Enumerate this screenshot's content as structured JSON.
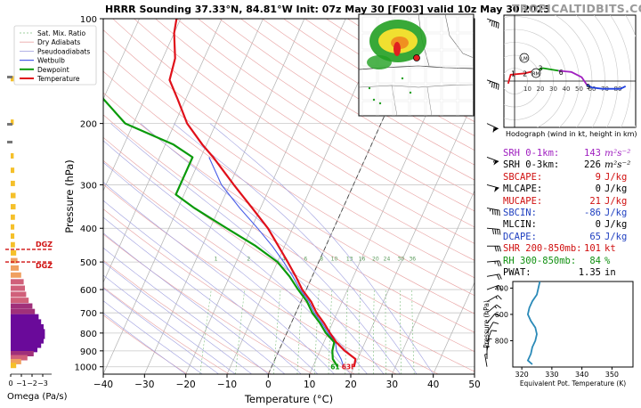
{
  "header": {
    "title": "HRRR Sounding 37.33°N, 84.81°W Init: 07z May 30 [F003] valid 10z May 30 2025",
    "brand": "TROPICALTIDBITS.COM"
  },
  "colors": {
    "temperature": "#e0101a",
    "dewpoint": "#0a9a0a",
    "wetbulb": "#4a5ee8",
    "dry_adiabat": "#e8a0a0",
    "moist_adiabat": "#a0a0e0",
    "mixing_ratio": "#80c080",
    "omega_up": "#6a0a9a",
    "omega_mid": "#d0607a",
    "omega_down": "#f5c02a"
  },
  "legend": [
    {
      "label": "Sat. Mix. Ratio",
      "style": "mixing"
    },
    {
      "label": "Dry Adiabats",
      "style": "dry"
    },
    {
      "label": "Pseudoadiabats",
      "style": "moist"
    },
    {
      "label": "Wetbulb",
      "style": "wetbulb"
    },
    {
      "label": "Dewpoint",
      "style": "dewpoint"
    },
    {
      "label": "Temperature",
      "style": "temperature"
    }
  ],
  "chart_data": [
    {
      "type": "line",
      "name": "skew-t",
      "title": "HRRR Sounding",
      "xlabel": "Temperature (°C)",
      "ylabel": "Pressure (hPa)",
      "x_ticks": [
        -40,
        -30,
        -20,
        -10,
        0,
        10,
        20,
        30,
        40,
        50
      ],
      "y_ticks": [
        100,
        200,
        300,
        400,
        500,
        600,
        700,
        800,
        900,
        1000
      ],
      "xlim": [
        -40,
        50
      ],
      "ylim": [
        1050,
        100
      ],
      "mixing_ratio_labels": [
        "1",
        "2",
        "4",
        "6",
        "8",
        "10",
        "13",
        "16",
        "20",
        "24",
        "30",
        "36"
      ],
      "surface_labels": {
        "dewpoint": "61",
        "temperature": "63F"
      },
      "series": [
        {
          "name": "Temperature",
          "points": [
            [
              1000,
              20
            ],
            [
              950,
              19.5
            ],
            [
              900,
              16
            ],
            [
              850,
              13
            ],
            [
              800,
              10.5
            ],
            [
              750,
              8
            ],
            [
              700,
              5
            ],
            [
              650,
              2.5
            ],
            [
              600,
              -1
            ],
            [
              550,
              -4
            ],
            [
              500,
              -7.5
            ],
            [
              450,
              -11.5
            ],
            [
              400,
              -16
            ],
            [
              350,
              -22
            ],
            [
              300,
              -29
            ],
            [
              250,
              -37
            ],
            [
              230,
              -41
            ],
            [
              200,
              -47
            ],
            [
              170,
              -52
            ],
            [
              150,
              -56
            ],
            [
              130,
              -57
            ],
            [
              110,
              -60
            ],
            [
              100,
              -61
            ]
          ]
        },
        {
          "name": "Dewpoint",
          "points": [
            [
              1000,
              16
            ],
            [
              950,
              14
            ],
            [
              900,
              13
            ],
            [
              850,
              12.5
            ],
            [
              800,
              9.5
            ],
            [
              750,
              7
            ],
            [
              700,
              4
            ],
            [
              650,
              1.5
            ],
            [
              600,
              -2
            ],
            [
              550,
              -5.5
            ],
            [
              500,
              -10
            ],
            [
              450,
              -17
            ],
            [
              400,
              -26
            ],
            [
              350,
              -36
            ],
            [
              320,
              -42
            ],
            [
              300,
              -42
            ],
            [
              280,
              -42
            ],
            [
              250,
              -42
            ],
            [
              230,
              -48
            ],
            [
              200,
              -62
            ],
            [
              170,
              -70
            ],
            [
              150,
              -75
            ],
            [
              130,
              -76
            ],
            [
              110,
              -78
            ],
            [
              100,
              -80
            ]
          ]
        },
        {
          "name": "Wetbulb",
          "points": [
            [
              1000,
              17.5
            ],
            [
              950,
              16
            ],
            [
              900,
              14
            ],
            [
              850,
              12.8
            ],
            [
              800,
              10
            ],
            [
              750,
              7.5
            ],
            [
              700,
              4.5
            ],
            [
              650,
              2
            ],
            [
              600,
              -1.5
            ],
            [
              550,
              -4.7
            ],
            [
              500,
              -8.5
            ],
            [
              450,
              -13
            ],
            [
              400,
              -18.5
            ],
            [
              350,
              -25
            ],
            [
              300,
              -32
            ],
            [
              250,
              -38
            ]
          ]
        }
      ]
    },
    {
      "type": "bar",
      "name": "omega-profile",
      "xlabel": "Omega (Pa/s)",
      "x_ticks": [
        "0",
        "−1",
        "−2",
        "−3"
      ],
      "dgz_label": "DGZ",
      "pressure_levels": [
        150,
        175,
        200,
        225,
        250,
        275,
        300,
        325,
        350,
        375,
        400,
        425,
        450,
        475,
        500,
        525,
        550,
        575,
        600,
        625,
        650,
        675,
        700,
        725,
        750,
        775,
        800,
        825,
        850,
        875,
        900,
        925,
        950,
        975,
        1000
      ],
      "values": [
        0.1,
        0,
        0.1,
        0,
        0.1,
        0.15,
        0.2,
        0.25,
        0.25,
        0.2,
        0.15,
        0.15,
        0.2,
        0.3,
        0.4,
        0.5,
        0.7,
        0.9,
        1.0,
        1.1,
        1.3,
        1.6,
        1.8,
        2.1,
        2.3,
        2.5,
        2.6,
        2.6,
        2.5,
        2.3,
        2.0,
        1.7,
        1.2,
        0.7,
        0.3
      ],
      "dgz_bounds_hpa": [
        460,
        500
      ]
    },
    {
      "type": "line",
      "name": "hodograph",
      "caption": "Hodograph (wind in kt, height in km)",
      "ring_labels": [
        "10",
        "20",
        "30",
        "40",
        "50",
        "60",
        "70",
        "80"
      ],
      "point_labels": [
        "1",
        "2",
        "3",
        "6",
        "9"
      ],
      "marker_labels": [
        "LM",
        "RM"
      ],
      "series": [
        {
          "name": "0-3km",
          "color": "#e0101a",
          "points": [
            [
              -5,
              -2
            ],
            [
              -3,
              5
            ],
            [
              8,
              6
            ],
            [
              16,
              8
            ]
          ]
        },
        {
          "name": "3-6km",
          "color": "#0a9a0a",
          "points": [
            [
              16,
              8
            ],
            [
              22,
              10
            ],
            [
              34,
              8
            ]
          ]
        },
        {
          "name": "6-9km",
          "color": "#a020c0",
          "points": [
            [
              34,
              8
            ],
            [
              44,
              7
            ],
            [
              52,
              3
            ],
            [
              56,
              -3
            ]
          ]
        },
        {
          "name": "9-12km",
          "color": "#2040e0",
          "points": [
            [
              56,
              -3
            ],
            [
              60,
              -5
            ],
            [
              68,
              -6
            ],
            [
              82,
              -6
            ],
            [
              86,
              -4
            ]
          ]
        }
      ]
    },
    {
      "type": "line",
      "name": "theta-e",
      "xlabel": "Equivalent Pot. Temperature (K)",
      "ylabel": "Pressure (hPa)",
      "x_ticks": [
        320,
        330,
        340,
        350
      ],
      "y_ticks": [
        400,
        600,
        800
      ],
      "xlim": [
        317,
        357
      ],
      "ylim": [
        1000,
        350
      ],
      "series": [
        {
          "name": "theta_e",
          "points": [
            [
              350,
              326
            ],
            [
              400,
              325.5
            ],
            [
              450,
              325
            ],
            [
              500,
              323.5
            ],
            [
              550,
              322.5
            ],
            [
              600,
              322
            ],
            [
              650,
              323
            ],
            [
              700,
              324.5
            ],
            [
              750,
              325
            ],
            [
              800,
              324.5
            ],
            [
              850,
              323.5
            ],
            [
              900,
              323
            ],
            [
              950,
              322
            ],
            [
              980,
              323.5
            ]
          ]
        }
      ]
    }
  ],
  "indices": [
    {
      "label": "SRH 0-1km:",
      "value": "143",
      "unit": "m²s⁻²",
      "color": "#a020c0",
      "italic": true
    },
    {
      "label": "SRH 0-3km:",
      "value": "226",
      "unit": "m²s⁻²",
      "color": "#000000",
      "italic": true
    },
    {
      "label": "SBCAPE:",
      "value": "9",
      "unit": "J/kg",
      "color": "#d01010"
    },
    {
      "label": "MLCAPE:",
      "value": "0",
      "unit": "J/kg",
      "color": "#000000"
    },
    {
      "label": "MUCAPE:",
      "value": "21",
      "unit": "J/kg",
      "color": "#d01010"
    },
    {
      "label": "SBCIN:",
      "value": "-86",
      "unit": "J/kg",
      "color": "#2040c0"
    },
    {
      "label": "MLCIN:",
      "value": "0",
      "unit": "J/kg",
      "color": "#000000"
    },
    {
      "label": "DCAPE:",
      "value": "65",
      "unit": "J/kg",
      "color": "#2040c0"
    },
    {
      "label": "SHR 200-850mb:",
      "value": "101",
      "unit": "kt",
      "color": "#d01010"
    },
    {
      "label": "RH 300-850mb:",
      "value": "84",
      "unit": "%",
      "color": "#109010"
    },
    {
      "label": "PWAT:",
      "value": "1.35",
      "unit": "in",
      "color": "#000000"
    }
  ],
  "wind_barbs": [
    {
      "p": 100,
      "spd": 45,
      "dir": 290
    },
    {
      "p": 150,
      "spd": 45,
      "dir": 290
    },
    {
      "p": 200,
      "spd": 60,
      "dir": 295
    },
    {
      "p": 250,
      "spd": 55,
      "dir": 290
    },
    {
      "p": 300,
      "spd": 50,
      "dir": 285
    },
    {
      "p": 350,
      "spd": 45,
      "dir": 280
    },
    {
      "p": 400,
      "spd": 40,
      "dir": 275
    },
    {
      "p": 450,
      "spd": 30,
      "dir": 270
    },
    {
      "p": 500,
      "spd": 25,
      "dir": 265
    },
    {
      "p": 550,
      "spd": 20,
      "dir": 260
    },
    {
      "p": 600,
      "spd": 15,
      "dir": 250
    },
    {
      "p": 650,
      "spd": 15,
      "dir": 240
    },
    {
      "p": 700,
      "spd": 15,
      "dir": 230
    },
    {
      "p": 750,
      "spd": 10,
      "dir": 220
    },
    {
      "p": 800,
      "spd": 10,
      "dir": 210
    },
    {
      "p": 850,
      "spd": 10,
      "dir": 200
    },
    {
      "p": 900,
      "spd": 5,
      "dir": 190
    },
    {
      "p": 950,
      "spd": 5,
      "dir": 180
    },
    {
      "p": 1000,
      "spd": 5,
      "dir": 170
    }
  ],
  "map": {
    "name": "radar-inset-map"
  }
}
